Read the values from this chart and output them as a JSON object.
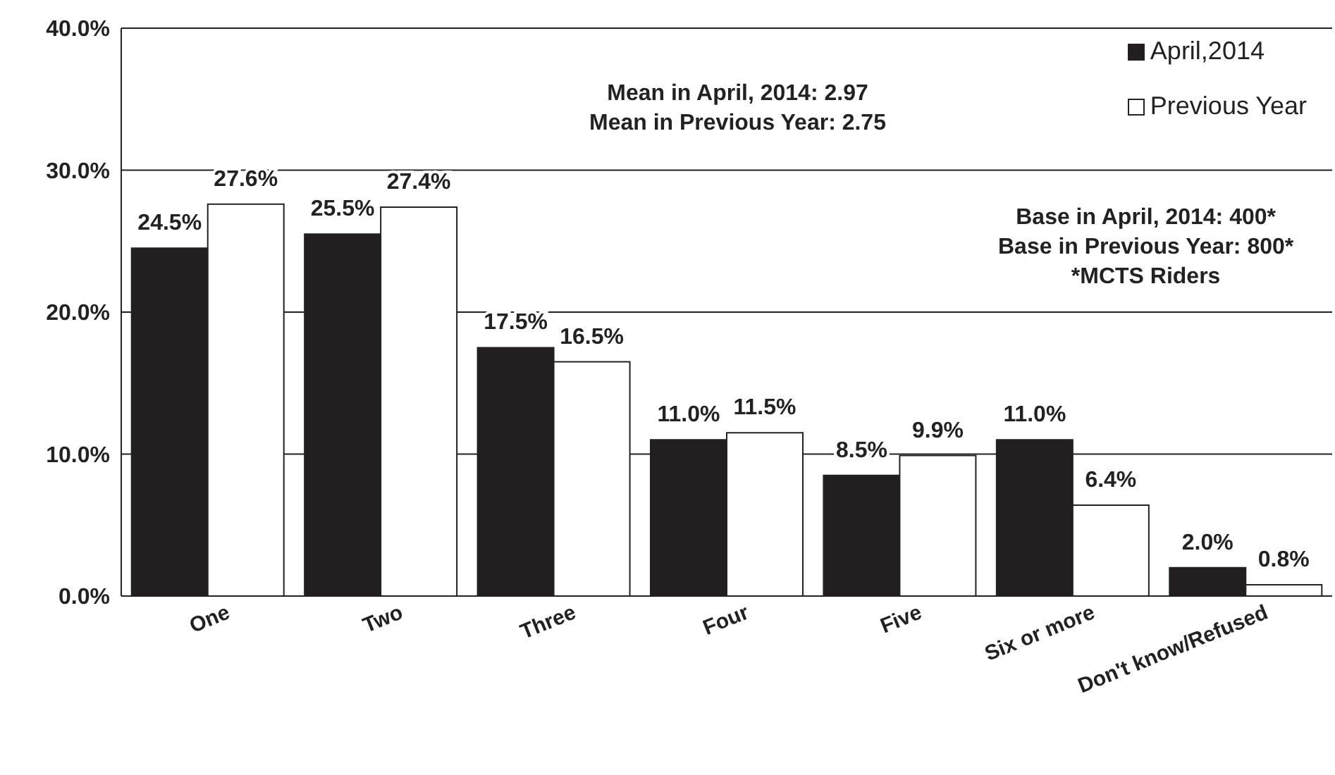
{
  "chart_data": {
    "type": "bar",
    "categories": [
      "One",
      "Two",
      "Three",
      "Four",
      "Five",
      "Six or more",
      "Don't know/Refused"
    ],
    "series": [
      {
        "name": "April,2014",
        "color": "#231f20",
        "values": [
          24.5,
          25.5,
          17.5,
          11.0,
          8.5,
          11.0,
          2.0
        ],
        "value_labels": [
          "24.5%",
          "25.5%",
          "17.5%",
          "11.0%",
          "8.5%",
          "11.0%",
          "2.0%"
        ]
      },
      {
        "name": "Previous Year",
        "color": "#ffffff",
        "values": [
          27.6,
          27.4,
          16.5,
          11.5,
          9.9,
          6.4,
          0.8
        ],
        "value_labels": [
          "27.6%",
          "27.4%",
          "16.5%",
          "11.5%",
          "9.9%",
          "6.4%",
          "0.8%"
        ]
      }
    ],
    "ylim": [
      0,
      40
    ],
    "yticks": [
      {
        "value": 0,
        "label": "0.0%"
      },
      {
        "value": 10,
        "label": "10.0%"
      },
      {
        "value": 20,
        "label": "20.0%"
      },
      {
        "value": 30,
        "label": "30.0%"
      },
      {
        "value": 40,
        "label": "40.0%"
      }
    ],
    "grid": "y",
    "legend": "top right",
    "annotations": [
      "Mean in April,  2014: 2.97\nMean in Previous Year: 2.75",
      "Base in April,  2014: 400*\nBase in Previous Year: 800*\n*MCTS Riders"
    ]
  }
}
